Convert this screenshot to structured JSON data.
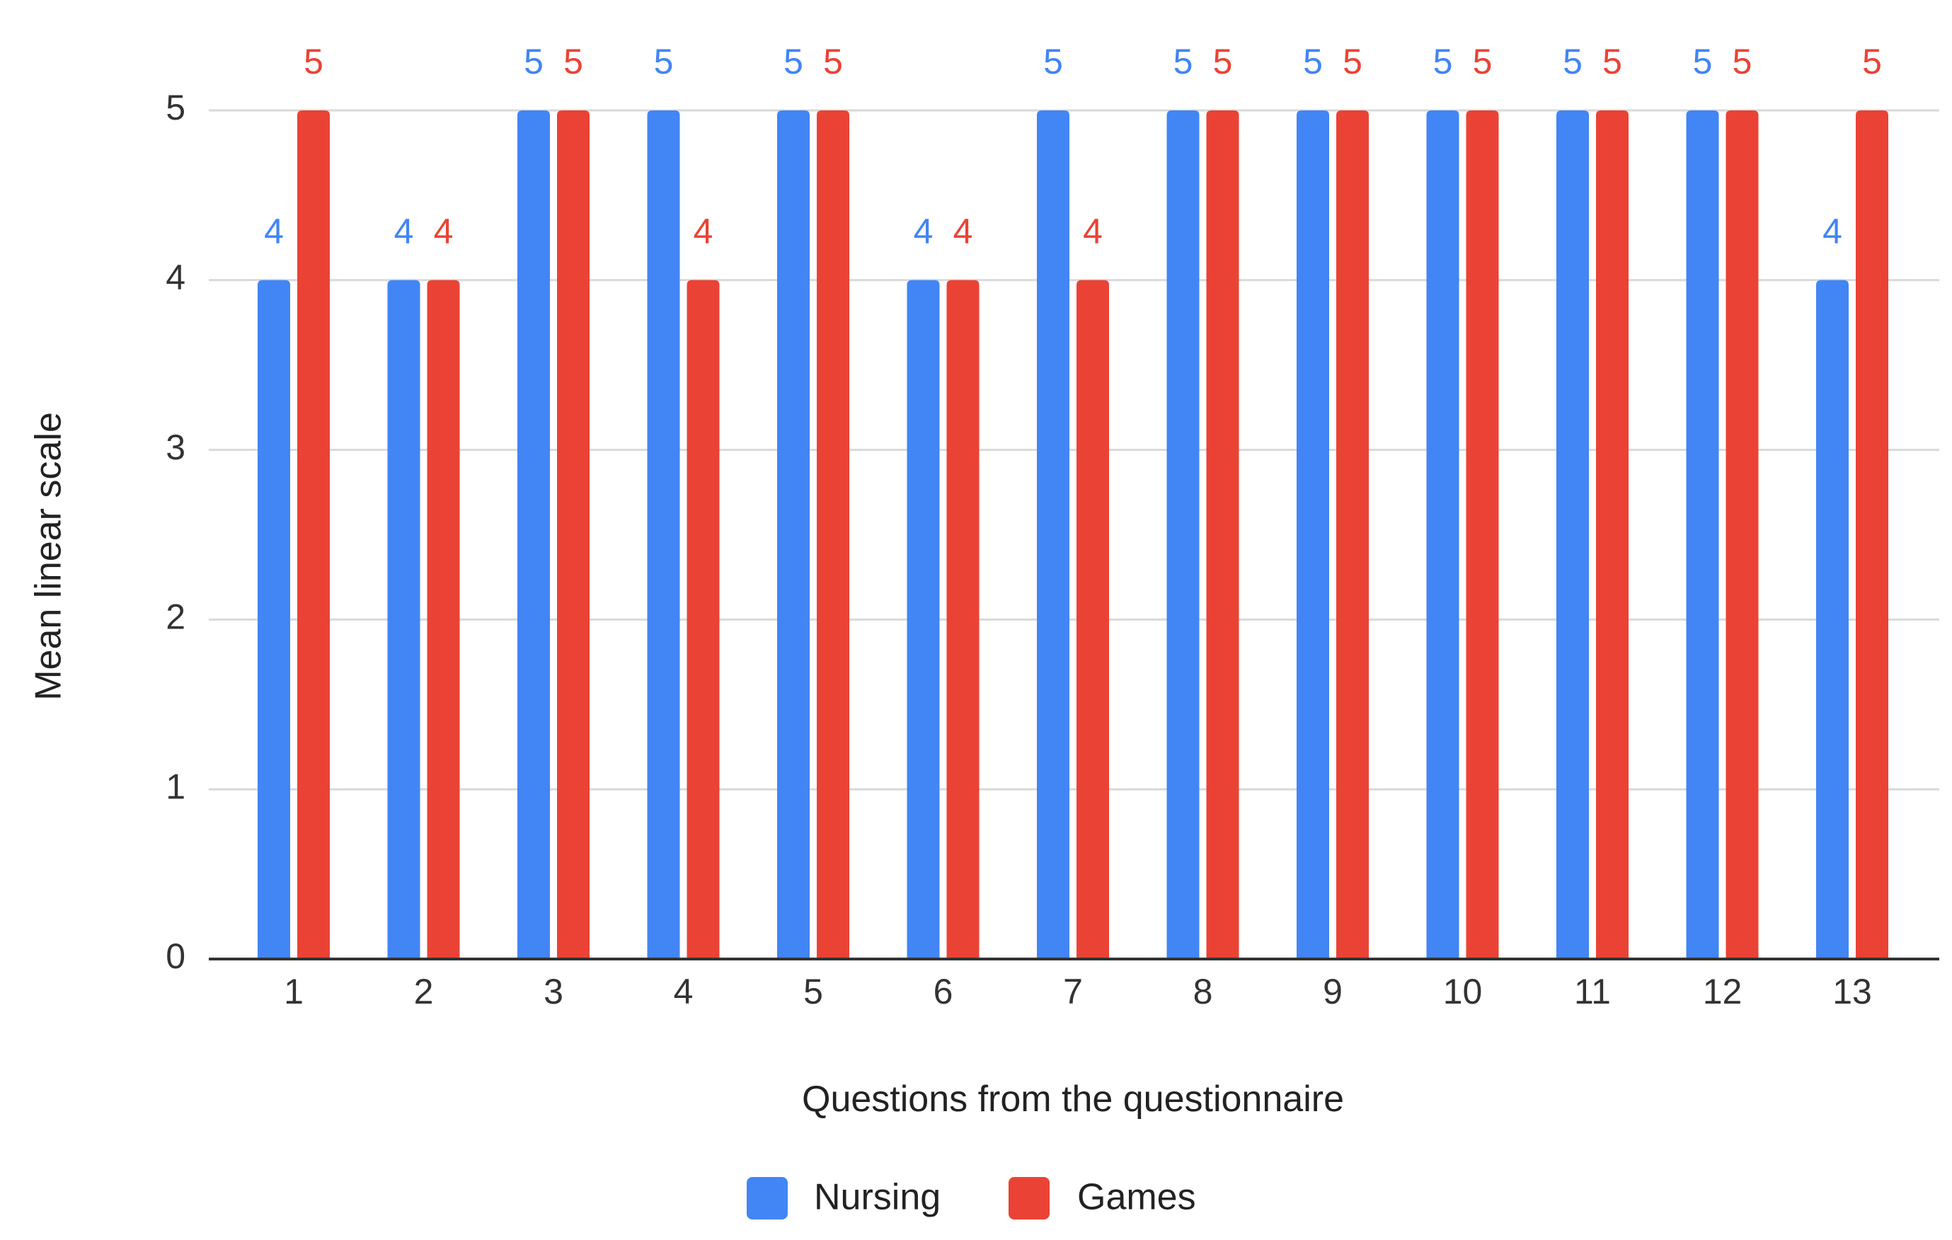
{
  "chart_data": {
    "type": "bar",
    "title": "",
    "xlabel": "Questions from the questionnaire",
    "ylabel": "Mean linear scale",
    "categories": [
      "1",
      "2",
      "3",
      "4",
      "5",
      "6",
      "7",
      "8",
      "9",
      "10",
      "11",
      "12",
      "13"
    ],
    "series": [
      {
        "name": "Nursing",
        "color": "#4285F4",
        "values": [
          4,
          4,
          5,
          5,
          5,
          4,
          5,
          5,
          5,
          5,
          5,
          5,
          4
        ]
      },
      {
        "name": "Games",
        "color": "#EA4335",
        "values": [
          5,
          4,
          5,
          4,
          5,
          4,
          4,
          5,
          5,
          5,
          5,
          5,
          5
        ]
      }
    ],
    "ylim": [
      0,
      5
    ],
    "yticks": [
      0,
      1,
      2,
      3,
      4,
      5
    ],
    "data_labels": true,
    "grid": true,
    "legend": "bottom"
  }
}
